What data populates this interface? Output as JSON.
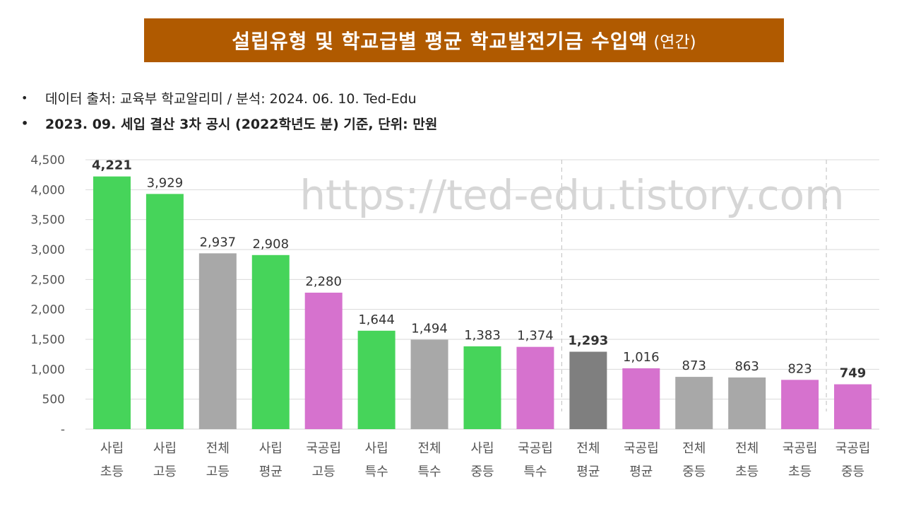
{
  "header": {
    "title": "설립유형 및 학교급별 평균 학교발전기금 수입액",
    "title_suffix": "(연간)"
  },
  "notes": [
    {
      "bullet": "•",
      "text": "데이터 출처: 교육부 학교알리미 / 분석: 2024. 06. 10. Ted-Edu"
    },
    {
      "bullet": "•",
      "text": "2023. 09. 세입 결산 3차 공시 (2022학년도 분) 기준, 단위: 만원"
    }
  ],
  "watermark": "https://ted-edu.tistory.com",
  "colors": {
    "title_bg": "#B05A00",
    "private": "#46D45A",
    "national_public": "#D672CE",
    "overall": "#A8A8A8",
    "overall_average": "#7F7F7F"
  },
  "chart_data": {
    "type": "bar",
    "ylim": [
      0,
      4500
    ],
    "yticks": [
      0,
      500,
      1000,
      1500,
      2000,
      2500,
      3000,
      3500,
      4000,
      4500
    ],
    "ytick_labels": [
      "-",
      "500",
      "1,000",
      "1,500",
      "2,000",
      "2,500",
      "3,000",
      "3,500",
      "4,000",
      "4,500"
    ],
    "grid": true,
    "categories": [
      [
        "사립",
        "초등"
      ],
      [
        "사립",
        "고등"
      ],
      [
        "전체",
        "고등"
      ],
      [
        "사립",
        "평균"
      ],
      [
        "국공립",
        "고등"
      ],
      [
        "사립",
        "특수"
      ],
      [
        "전체",
        "특수"
      ],
      [
        "사립",
        "중등"
      ],
      [
        "국공립",
        "특수"
      ],
      [
        "전체",
        "평균"
      ],
      [
        "국공립",
        "평균"
      ],
      [
        "전체",
        "중등"
      ],
      [
        "전체",
        "초등"
      ],
      [
        "국공립",
        "초등"
      ],
      [
        "국공립",
        "중등"
      ]
    ],
    "values": [
      4221,
      3929,
      2937,
      2908,
      2280,
      1644,
      1494,
      1383,
      1374,
      1293,
      1016,
      873,
      863,
      823,
      749
    ],
    "value_labels": [
      "4,221",
      "3,929",
      "2,937",
      "2,908",
      "2,280",
      "1,644",
      "1,494",
      "1,383",
      "1,374",
      "1,293",
      "1,016",
      "873",
      "863",
      "823",
      "749"
    ],
    "bold_labels": [
      0,
      9,
      14
    ],
    "groups": [
      "private",
      "private",
      "overall",
      "private",
      "national_public",
      "private",
      "overall",
      "private",
      "national_public",
      "overall_average",
      "national_public",
      "overall",
      "overall",
      "national_public",
      "national_public"
    ],
    "dashed_separators_after": [
      8,
      13
    ]
  }
}
